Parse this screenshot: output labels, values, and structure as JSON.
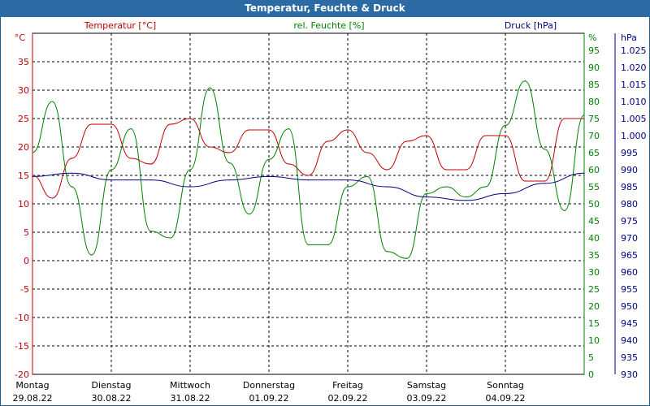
{
  "window": {
    "title": "Temperatur, Feuchte & Druck"
  },
  "colors": {
    "temperature": "#c00000",
    "humidity": "#008000",
    "pressure": "#000080",
    "titlebar": "#2b6aa2",
    "grid": "#000000"
  },
  "chart_data": {
    "type": "line",
    "title": "Temperatur, Feuchte & Druck",
    "xlabels": [
      {
        "day": "Montag",
        "date": "29.08.22"
      },
      {
        "day": "Dienstag",
        "date": "30.08.22"
      },
      {
        "day": "Mittwoch",
        "date": "31.08.22"
      },
      {
        "day": "Donnerstag",
        "date": "01.09.22"
      },
      {
        "day": "Freitag",
        "date": "02.09.22"
      },
      {
        "day": "Samstag",
        "date": "03.09.22"
      },
      {
        "day": "Sonntag",
        "date": "04.09.22"
      }
    ],
    "axes": {
      "left": {
        "unit": "°C",
        "label": "Temperatur [°C]",
        "min": -20,
        "max": 40,
        "step": 5
      },
      "mid": {
        "unit": "%",
        "label": "rel. Feuchte [%]",
        "min": 0,
        "max": 100,
        "step": 5
      },
      "right": {
        "unit": "hPa",
        "label": "Druck [hPa]",
        "min": 930,
        "max": 1030,
        "step": 5
      }
    },
    "grid": true,
    "x_unit": "hours since start (29.08.22 00:00)",
    "series": [
      {
        "name": "Temperatur [°C]",
        "axis": "left",
        "color": "#c00000",
        "x": [
          0,
          6,
          12,
          18,
          24,
          30,
          36,
          42,
          48,
          54,
          60,
          66,
          72,
          78,
          84,
          90,
          96,
          102,
          108,
          114,
          120,
          126,
          132,
          138,
          144,
          150,
          156,
          162,
          168
        ],
        "values": [
          15,
          11,
          18,
          24,
          24,
          18,
          17,
          24,
          25,
          20,
          19,
          23,
          23,
          17,
          15,
          21,
          23,
          19,
          16,
          21,
          22,
          16,
          16,
          22,
          22,
          14,
          14,
          25,
          25
        ]
      },
      {
        "name": "rel. Feuchte [%]",
        "axis": "mid",
        "color": "#008000",
        "x": [
          0,
          6,
          12,
          18,
          24,
          30,
          36,
          42,
          48,
          54,
          60,
          66,
          72,
          78,
          84,
          90,
          96,
          102,
          108,
          114,
          120,
          126,
          132,
          138,
          144,
          150,
          156,
          162,
          168
        ],
        "values": [
          65,
          80,
          55,
          35,
          60,
          72,
          42,
          40,
          60,
          84,
          62,
          47,
          63,
          72,
          38,
          38,
          55,
          58,
          36,
          34,
          53,
          55,
          52,
          55,
          73,
          86,
          66,
          48,
          76
        ]
      },
      {
        "name": "Druck [hPa]",
        "axis": "right",
        "color": "#000080",
        "x": [
          0,
          12,
          24,
          36,
          48,
          60,
          72,
          84,
          96,
          108,
          120,
          132,
          144,
          156,
          168
        ],
        "values": [
          988,
          989,
          987,
          987,
          985,
          987,
          988,
          987,
          987,
          985,
          982,
          981,
          983,
          986,
          989
        ]
      }
    ]
  }
}
